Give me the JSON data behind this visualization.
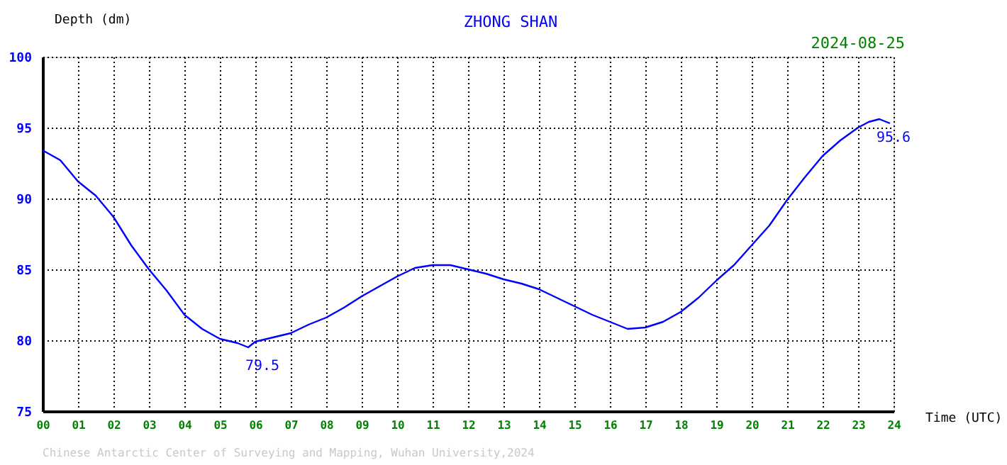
{
  "chart_data": {
    "type": "line",
    "title": "ZHONG SHAN",
    "xlabel": "Time (UTC)",
    "ylabel": "Depth (dm)",
    "x": [
      0,
      0.5,
      1,
      1.5,
      2,
      2.5,
      3,
      3.5,
      4,
      4.5,
      5,
      5.5,
      5.8,
      6,
      6.5,
      7,
      7.5,
      8,
      8.5,
      9,
      9.5,
      10,
      10.5,
      11,
      11.5,
      12,
      12.5,
      13,
      13.5,
      14,
      14.5,
      15,
      15.5,
      16,
      16.5,
      17,
      17.5,
      18,
      18.5,
      19,
      19.5,
      20,
      20.5,
      21,
      21.5,
      22,
      22.5,
      23,
      23.3,
      23.6,
      23.9
    ],
    "series": [
      {
        "color": "#0000ff",
        "values": [
          93.4,
          92.7,
          91.2,
          90.2,
          88.7,
          86.7,
          85.0,
          83.5,
          81.8,
          80.8,
          80.1,
          79.8,
          79.5,
          79.9,
          80.2,
          80.5,
          81.1,
          81.6,
          82.3,
          83.1,
          83.8,
          84.5,
          85.1,
          85.3,
          85.3,
          85.0,
          84.7,
          84.3,
          84.0,
          83.6,
          83.0,
          82.4,
          81.8,
          81.3,
          80.8,
          80.9,
          81.3,
          82.0,
          83.0,
          84.2,
          85.3,
          86.7,
          88.1,
          89.9,
          91.5,
          93.0,
          94.1,
          95.0,
          95.4,
          95.6,
          95.3
        ]
      }
    ],
    "xlim": [
      0,
      24
    ],
    "ylim": [
      75,
      100
    ],
    "xticks": [
      {
        "value": 0,
        "label": "00"
      },
      {
        "value": 1,
        "label": "01"
      },
      {
        "value": 2,
        "label": "02"
      },
      {
        "value": 3,
        "label": "03"
      },
      {
        "value": 4,
        "label": "04"
      },
      {
        "value": 5,
        "label": "05"
      },
      {
        "value": 6,
        "label": "06"
      },
      {
        "value": 7,
        "label": "07"
      },
      {
        "value": 8,
        "label": "08"
      },
      {
        "value": 9,
        "label": "09"
      },
      10,
      11,
      12,
      13,
      14,
      15,
      16,
      17,
      18,
      19,
      20,
      21,
      22,
      23,
      24
    ],
    "yticks": [
      75,
      80,
      85,
      90,
      95,
      100
    ],
    "grid": true,
    "line_style": "solid",
    "legend": false,
    "annotations": [
      {
        "text": "79.5",
        "x": 5.8,
        "y": 79.5
      },
      {
        "text": "95.6",
        "x": 23.6,
        "y": 95.6
      },
      "2024-08-25",
      "Chinese Antarctic Center of Surveying and Mapping, Wuhan University,2024"
    ]
  }
}
